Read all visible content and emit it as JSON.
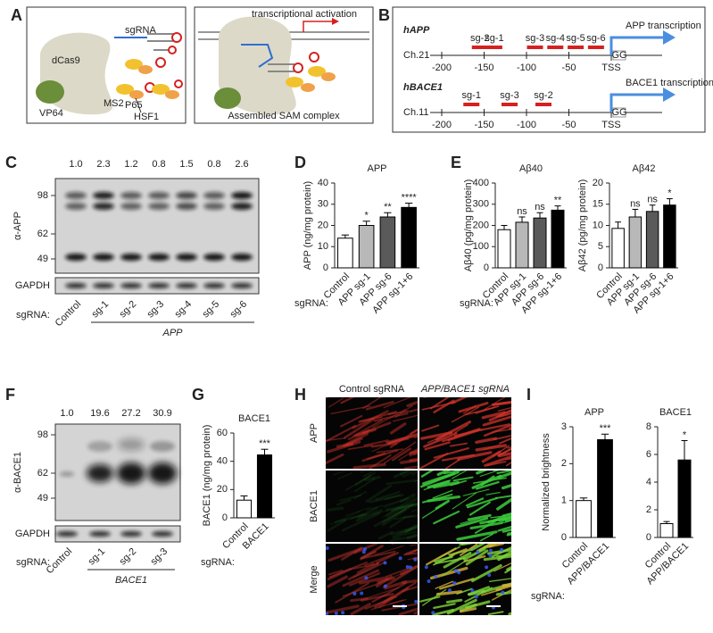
{
  "panel_labels": [
    "A",
    "B",
    "C",
    "D",
    "E",
    "F",
    "G",
    "H",
    "I"
  ],
  "diagram_a": {
    "sgrna": "sgRNA",
    "dcas9": "dCas9",
    "vp64": "VP64",
    "ms2": "MS2",
    "p65": "P65",
    "hsf1": "HSF1",
    "activation": "transcriptional activation",
    "complex": "Assembled SAM complex"
  },
  "diagram_b": {
    "tracks": [
      {
        "gene": "hAPP",
        "guides": [
          "sg-2",
          "sg-1",
          "sg-3",
          "sg-4",
          "sg-5",
          "sg-6"
        ],
        "transcription": "APP transcription",
        "chromosome": "Ch.21",
        "ticks": [
          -200,
          -150,
          -100,
          -50
        ],
        "tss": "TSS",
        "pam": "GG"
      },
      {
        "gene": "hBACE1",
        "guides": [
          "sg-1",
          "sg-3",
          "sg-2"
        ],
        "transcription": "BACE1 transcription",
        "chromosome": "Ch.11",
        "ticks": [
          -200,
          -150,
          -100,
          -50
        ],
        "tss": "TSS",
        "pam": "GG"
      }
    ]
  },
  "blot_c": {
    "ratios": [
      "1.0",
      "2.3",
      "1.2",
      "0.8",
      "1.5",
      "0.8",
      "2.6"
    ],
    "ratio_colors": [
      "#222222",
      "#d62020",
      "#222222",
      "#222222",
      "#222222",
      "#222222",
      "#d62020"
    ],
    "markers": [
      "98",
      "62",
      "49"
    ],
    "antibody": "α-APP",
    "loading": "GAPDH",
    "lane_prefix": "sgRNA:",
    "lanes": [
      "Control",
      "sg-1",
      "sg-2",
      "sg-3",
      "sg-4",
      "sg-5",
      "sg-6"
    ],
    "group": "APP"
  },
  "blot_f": {
    "ratios": [
      "1.0",
      "19.6",
      "27.2",
      "30.9"
    ],
    "ratio_colors": [
      "#222222",
      "#222222",
      "#222222",
      "#d62020"
    ],
    "markers": [
      "98",
      "62",
      "49"
    ],
    "antibody": "α-BACE1",
    "loading": "GAPDH",
    "lane_prefix": "sgRNA:",
    "lanes": [
      "Control",
      "sg-1",
      "sg-2",
      "sg-3"
    ],
    "group": "BACE1"
  },
  "microscopy_h": {
    "columns": [
      "Control sgRNA",
      "APP/BACE1 sgRNA"
    ],
    "rows": [
      "APP",
      "BACE1",
      "Merge"
    ],
    "row_colors": [
      "#d62020",
      "#3cb43c",
      "#222222"
    ]
  },
  "chart_data": [
    {
      "type": "bar",
      "title": "APP",
      "y_label": "APP (ng/mg protein)",
      "x_label": "sgRNA:",
      "categories": [
        "Control",
        "APP sg-1",
        "APP sg-6",
        "APP sg-1+6"
      ],
      "values": [
        14,
        20,
        24,
        28.5
      ],
      "errors": [
        1.5,
        2,
        2,
        2
      ],
      "annotations": [
        null,
        "*",
        "**",
        "****"
      ],
      "colors": [
        "#ffffff",
        "#b8b8b8",
        "#5a5a5a",
        "#000000"
      ],
      "ylim": [
        0,
        40
      ],
      "yticks": [
        0,
        10,
        20,
        30,
        40
      ]
    },
    {
      "type": "bar",
      "title": "Aβ40",
      "y_label": "Aβ40 (pg/mg protein)",
      "x_label": "sgRNA:",
      "categories": [
        "Control",
        "APP sg-1",
        "APP sg-6",
        "APP sg-1+6"
      ],
      "values": [
        180,
        215,
        235,
        272
      ],
      "errors": [
        20,
        25,
        25,
        20
      ],
      "annotations": [
        null,
        "ns",
        "ns",
        "**"
      ],
      "colors": [
        "#ffffff",
        "#b8b8b8",
        "#5a5a5a",
        "#000000"
      ],
      "ylim": [
        0,
        400
      ],
      "yticks": [
        0,
        100,
        200,
        300,
        400
      ]
    },
    {
      "type": "bar",
      "title": "Aβ42",
      "y_label": "Aβ42 (pg/mg protein)",
      "categories": [
        "Control",
        "APP sg-1",
        "APP sg-6",
        "APP sg-1+6"
      ],
      "values": [
        9.3,
        12,
        13.3,
        14.8
      ],
      "errors": [
        1.5,
        1.8,
        1.5,
        1.5
      ],
      "annotations": [
        null,
        "ns",
        "ns",
        "*"
      ],
      "colors": [
        "#ffffff",
        "#b8b8b8",
        "#5a5a5a",
        "#000000"
      ],
      "ylim": [
        0,
        20
      ],
      "yticks": [
        0,
        5,
        10,
        15,
        20
      ]
    },
    {
      "type": "bar",
      "title": "BACE1",
      "y_label": "BACE1 (ng/mg protein)",
      "x_label": "sgRNA:",
      "categories": [
        "Control",
        "BACE1"
      ],
      "values": [
        12.5,
        44.5
      ],
      "errors": [
        3,
        4
      ],
      "annotations": [
        null,
        "***"
      ],
      "colors": [
        "#ffffff",
        "#000000"
      ],
      "ylim": [
        0,
        60
      ],
      "yticks": [
        0,
        20,
        40,
        60
      ]
    },
    {
      "type": "bar",
      "title": "APP",
      "y_label": "Normalized brightness",
      "x_label": "sgRNA:",
      "categories": [
        "Control",
        "APP/BACE1"
      ],
      "values": [
        1.0,
        2.65
      ],
      "errors": [
        0.07,
        0.15
      ],
      "annotations": [
        null,
        "***"
      ],
      "colors": [
        "#ffffff",
        "#000000"
      ],
      "ylim": [
        0,
        3
      ],
      "yticks": [
        0,
        1,
        2,
        3
      ]
    },
    {
      "type": "bar",
      "title": "BACE1",
      "categories": [
        "Control",
        "APP/BACE1"
      ],
      "values": [
        1.0,
        5.6
      ],
      "errors": [
        0.15,
        1.4
      ],
      "annotations": [
        null,
        "*"
      ],
      "colors": [
        "#ffffff",
        "#000000"
      ],
      "ylim": [
        0,
        8
      ],
      "yticks": [
        0,
        2,
        4,
        6,
        8
      ]
    }
  ]
}
